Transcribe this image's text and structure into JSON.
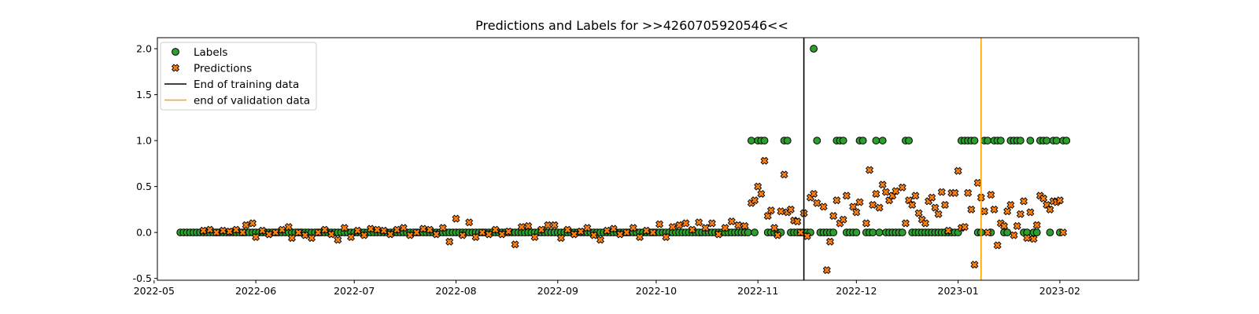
{
  "chart_data": {
    "type": "scatter",
    "title": "Predictions and Labels for >>4260705920546<<",
    "xlabel": "",
    "ylabel": "",
    "x_axis_type": "date",
    "xlim": [
      "2022-05-02",
      "2023-02-25"
    ],
    "ylim": [
      -0.52,
      2.12
    ],
    "x_ticks": [
      "2022-05",
      "2022-06",
      "2022-07",
      "2022-08",
      "2022-09",
      "2022-10",
      "2022-11",
      "2022-12",
      "2023-01",
      "2023-02"
    ],
    "y_ticks": [
      "-0.5",
      "0.0",
      "0.5",
      "1.0",
      "1.5",
      "2.0"
    ],
    "grid": false,
    "legend": {
      "placement": "top-left",
      "entries": [
        "Labels",
        "Predictions",
        "End of training data",
        "end of validation data"
      ]
    },
    "vertical_lines": [
      {
        "name": "End of training data",
        "x": "2022-11-15",
        "color": "#000000"
      },
      {
        "name": "end of validation data",
        "x": "2023-01-08",
        "color": "#FFA500"
      }
    ],
    "series": [
      {
        "name": "Labels",
        "marker": "circle",
        "color": "#2ca02c",
        "date_range": [
          "2022-05-09",
          "2023-02-03"
        ],
        "value_by_date": [
          {
            "from": "2022-05-09",
            "to": "2022-10-29",
            "y": 0
          },
          {
            "from": "2022-10-30",
            "to": "2022-10-30",
            "y": 1
          },
          {
            "from": "2022-10-31",
            "to": "2022-10-31",
            "y": 0
          },
          {
            "from": "2022-11-01",
            "to": "2022-11-03",
            "y": 1
          },
          {
            "from": "2022-11-04",
            "to": "2022-11-08",
            "y": 0
          },
          {
            "from": "2022-11-09",
            "to": "2022-11-10",
            "y": 1
          },
          {
            "from": "2022-11-11",
            "to": "2022-11-17",
            "y": 0
          },
          {
            "from": "2022-11-18",
            "to": "2022-11-18",
            "y": 2
          },
          {
            "from": "2022-11-19",
            "to": "2022-11-19",
            "y": 1
          },
          {
            "from": "2022-11-20",
            "to": "2022-11-24",
            "y": 0
          },
          {
            "from": "2022-11-25",
            "to": "2022-11-27",
            "y": 1
          },
          {
            "from": "2022-11-28",
            "to": "2022-12-01",
            "y": 0
          },
          {
            "from": "2022-12-02",
            "to": "2022-12-03",
            "y": 1
          },
          {
            "from": "2022-12-04",
            "to": "2022-12-06",
            "y": 0
          },
          {
            "from": "2022-12-07",
            "to": "2022-12-07",
            "y": 1
          },
          {
            "from": "2022-12-08",
            "to": "2022-12-08",
            "y": 0
          },
          {
            "from": "2022-12-09",
            "to": "2022-12-09",
            "y": 1
          },
          {
            "from": "2022-12-10",
            "to": "2022-12-15",
            "y": 0
          },
          {
            "from": "2022-12-16",
            "to": "2022-12-17",
            "y": 1
          },
          {
            "from": "2022-12-18",
            "to": "2023-01-01",
            "y": 0
          },
          {
            "from": "2023-01-02",
            "to": "2023-01-06",
            "y": 1
          },
          {
            "from": "2023-01-07",
            "to": "2023-01-08",
            "y": 0
          },
          {
            "from": "2023-01-09",
            "to": "2023-01-10",
            "y": 1
          },
          {
            "from": "2023-01-11",
            "to": "2023-01-11",
            "y": 0
          },
          {
            "from": "2023-01-12",
            "to": "2023-01-14",
            "y": 1
          },
          {
            "from": "2023-01-15",
            "to": "2023-01-16",
            "y": 0
          },
          {
            "from": "2023-01-17",
            "to": "2023-01-20",
            "y": 1
          },
          {
            "from": "2023-01-21",
            "to": "2023-01-22",
            "y": 0
          },
          {
            "from": "2023-01-23",
            "to": "2023-01-23",
            "y": 1
          },
          {
            "from": "2023-01-24",
            "to": "2023-01-25",
            "y": 0
          },
          {
            "from": "2023-01-26",
            "to": "2023-01-28",
            "y": 1
          },
          {
            "from": "2023-01-29",
            "to": "2023-01-29",
            "y": 0
          },
          {
            "from": "2023-01-30",
            "to": "2023-01-31",
            "y": 1
          },
          {
            "from": "2023-02-01",
            "to": "2023-02-01",
            "y": 0
          },
          {
            "from": "2023-02-02",
            "to": "2023-02-03",
            "y": 1
          }
        ]
      },
      {
        "name": "Predictions",
        "marker": "x",
        "color": "#ff7f0e",
        "note_range": [
          "2022-05-16",
          "2023-02-02"
        ],
        "points": [
          [
            "2022-05-16",
            0.02
          ],
          [
            "2022-05-18",
            0.03
          ],
          [
            "2022-05-20",
            0.0
          ],
          [
            "2022-05-22",
            0.02
          ],
          [
            "2022-05-24",
            0.01
          ],
          [
            "2022-05-26",
            0.03
          ],
          [
            "2022-05-28",
            0.0
          ],
          [
            "2022-05-29",
            0.08
          ],
          [
            "2022-05-31",
            0.1
          ],
          [
            "2022-06-01",
            -0.05
          ],
          [
            "2022-06-03",
            0.02
          ],
          [
            "2022-06-05",
            -0.02
          ],
          [
            "2022-06-07",
            0.0
          ],
          [
            "2022-06-09",
            0.03
          ],
          [
            "2022-06-11",
            0.06
          ],
          [
            "2022-06-12",
            -0.06
          ],
          [
            "2022-06-14",
            0.0
          ],
          [
            "2022-06-16",
            -0.03
          ],
          [
            "2022-06-18",
            -0.06
          ],
          [
            "2022-06-20",
            0.0
          ],
          [
            "2022-06-22",
            0.03
          ],
          [
            "2022-06-24",
            -0.02
          ],
          [
            "2022-06-26",
            -0.08
          ],
          [
            "2022-06-28",
            0.05
          ],
          [
            "2022-06-30",
            -0.05
          ],
          [
            "2022-07-02",
            0.02
          ],
          [
            "2022-07-04",
            -0.03
          ],
          [
            "2022-07-06",
            0.04
          ],
          [
            "2022-07-08",
            0.03
          ],
          [
            "2022-07-10",
            0.02
          ],
          [
            "2022-07-12",
            -0.02
          ],
          [
            "2022-07-14",
            0.03
          ],
          [
            "2022-07-16",
            0.05
          ],
          [
            "2022-07-18",
            -0.03
          ],
          [
            "2022-07-20",
            0.0
          ],
          [
            "2022-07-22",
            0.04
          ],
          [
            "2022-07-24",
            0.03
          ],
          [
            "2022-07-26",
            -0.02
          ],
          [
            "2022-07-28",
            0.05
          ],
          [
            "2022-07-30",
            -0.1
          ],
          [
            "2022-08-01",
            0.15
          ],
          [
            "2022-08-03",
            -0.03
          ],
          [
            "2022-08-05",
            0.11
          ],
          [
            "2022-08-07",
            -0.05
          ],
          [
            "2022-08-09",
            0.0
          ],
          [
            "2022-08-11",
            -0.02
          ],
          [
            "2022-08-13",
            0.03
          ],
          [
            "2022-08-15",
            -0.02
          ],
          [
            "2022-08-17",
            0.01
          ],
          [
            "2022-08-19",
            -0.13
          ],
          [
            "2022-08-21",
            0.06
          ],
          [
            "2022-08-23",
            0.07
          ],
          [
            "2022-08-25",
            -0.05
          ],
          [
            "2022-08-27",
            0.03
          ],
          [
            "2022-08-29",
            0.08
          ],
          [
            "2022-08-31",
            0.08
          ],
          [
            "2022-09-02",
            -0.06
          ],
          [
            "2022-09-04",
            0.03
          ],
          [
            "2022-09-06",
            -0.02
          ],
          [
            "2022-09-08",
            0.01
          ],
          [
            "2022-09-10",
            0.05
          ],
          [
            "2022-09-12",
            -0.03
          ],
          [
            "2022-09-14",
            -0.08
          ],
          [
            "2022-09-16",
            0.02
          ],
          [
            "2022-09-18",
            0.04
          ],
          [
            "2022-09-20",
            -0.02
          ],
          [
            "2022-09-22",
            0.0
          ],
          [
            "2022-09-24",
            0.05
          ],
          [
            "2022-09-26",
            -0.05
          ],
          [
            "2022-09-28",
            0.02
          ],
          [
            "2022-09-30",
            0.0
          ],
          [
            "2022-10-02",
            0.09
          ],
          [
            "2022-10-04",
            -0.05
          ],
          [
            "2022-10-06",
            0.06
          ],
          [
            "2022-10-08",
            0.08
          ],
          [
            "2022-10-10",
            0.1
          ],
          [
            "2022-10-12",
            0.03
          ],
          [
            "2022-10-14",
            0.11
          ],
          [
            "2022-10-16",
            0.05
          ],
          [
            "2022-10-18",
            0.1
          ],
          [
            "2022-10-20",
            -0.02
          ],
          [
            "2022-10-22",
            0.05
          ],
          [
            "2022-10-24",
            0.12
          ],
          [
            "2022-10-26",
            0.08
          ],
          [
            "2022-10-28",
            0.07
          ],
          [
            "2022-10-30",
            0.32
          ],
          [
            "2022-10-31",
            0.35
          ],
          [
            "2022-11-01",
            0.5
          ],
          [
            "2022-11-02",
            0.42
          ],
          [
            "2022-11-03",
            0.78
          ],
          [
            "2022-11-04",
            0.18
          ],
          [
            "2022-11-05",
            0.24
          ],
          [
            "2022-11-06",
            0.05
          ],
          [
            "2022-11-07",
            -0.03
          ],
          [
            "2022-11-08",
            0.23
          ],
          [
            "2022-11-09",
            0.63
          ],
          [
            "2022-11-10",
            0.22
          ],
          [
            "2022-11-11",
            0.25
          ],
          [
            "2022-11-12",
            0.13
          ],
          [
            "2022-11-13",
            0.12
          ],
          [
            "2022-11-14",
            0.0
          ],
          [
            "2022-11-15",
            0.21
          ],
          [
            "2022-11-16",
            -0.04
          ],
          [
            "2022-11-17",
            0.38
          ],
          [
            "2022-11-18",
            0.42
          ],
          [
            "2022-11-19",
            0.32
          ],
          [
            "2022-11-21",
            0.28
          ],
          [
            "2022-11-22",
            -0.41
          ],
          [
            "2022-11-23",
            -0.1
          ],
          [
            "2022-11-24",
            0.18
          ],
          [
            "2022-11-25",
            0.35
          ],
          [
            "2022-11-26",
            0.1
          ],
          [
            "2022-11-27",
            0.14
          ],
          [
            "2022-11-28",
            0.4
          ],
          [
            "2022-11-30",
            0.28
          ],
          [
            "2022-12-01",
            0.22
          ],
          [
            "2022-12-02",
            0.33
          ],
          [
            "2022-12-04",
            0.1
          ],
          [
            "2022-12-05",
            0.68
          ],
          [
            "2022-12-06",
            0.3
          ],
          [
            "2022-12-07",
            0.42
          ],
          [
            "2022-12-08",
            0.27
          ],
          [
            "2022-12-09",
            0.52
          ],
          [
            "2022-12-10",
            0.44
          ],
          [
            "2022-12-11",
            0.35
          ],
          [
            "2022-12-12",
            0.4
          ],
          [
            "2022-12-13",
            0.45
          ],
          [
            "2022-12-15",
            0.49
          ],
          [
            "2022-12-16",
            0.1
          ],
          [
            "2022-12-17",
            0.35
          ],
          [
            "2022-12-18",
            0.3
          ],
          [
            "2022-12-19",
            0.4
          ],
          [
            "2022-12-20",
            0.21
          ],
          [
            "2022-12-21",
            0.14
          ],
          [
            "2022-12-22",
            0.1
          ],
          [
            "2022-12-23",
            0.34
          ],
          [
            "2022-12-24",
            0.38
          ],
          [
            "2022-12-25",
            0.27
          ],
          [
            "2022-12-26",
            0.2
          ],
          [
            "2022-12-27",
            0.44
          ],
          [
            "2022-12-28",
            0.3
          ],
          [
            "2022-12-29",
            0.02
          ],
          [
            "2022-12-30",
            0.43
          ],
          [
            "2022-12-31",
            0.43
          ],
          [
            "2023-01-01",
            0.67
          ],
          [
            "2023-01-02",
            0.05
          ],
          [
            "2023-01-03",
            0.06
          ],
          [
            "2023-01-04",
            0.43
          ],
          [
            "2023-01-05",
            0.25
          ],
          [
            "2023-01-06",
            -0.35
          ],
          [
            "2023-01-07",
            0.54
          ],
          [
            "2023-01-08",
            0.38
          ],
          [
            "2023-01-09",
            0.23
          ],
          [
            "2023-01-10",
            0.0
          ],
          [
            "2023-01-11",
            0.41
          ],
          [
            "2023-01-12",
            0.25
          ],
          [
            "2023-01-13",
            -0.14
          ],
          [
            "2023-01-14",
            0.1
          ],
          [
            "2023-01-15",
            0.07
          ],
          [
            "2023-01-16",
            0.23
          ],
          [
            "2023-01-17",
            0.3
          ],
          [
            "2023-01-18",
            -0.03
          ],
          [
            "2023-01-19",
            0.07
          ],
          [
            "2023-01-20",
            0.2
          ],
          [
            "2023-01-21",
            0.34
          ],
          [
            "2023-01-22",
            -0.06
          ],
          [
            "2023-01-23",
            0.22
          ],
          [
            "2023-01-24",
            -0.07
          ],
          [
            "2023-01-25",
            0.08
          ],
          [
            "2023-01-26",
            0.4
          ],
          [
            "2023-01-27",
            0.37
          ],
          [
            "2023-01-28",
            0.3
          ],
          [
            "2023-01-29",
            0.25
          ],
          [
            "2023-01-30",
            0.34
          ],
          [
            "2023-01-31",
            0.33
          ],
          [
            "2023-02-01",
            0.35
          ],
          [
            "2023-02-02",
            0.0
          ]
        ]
      }
    ]
  }
}
